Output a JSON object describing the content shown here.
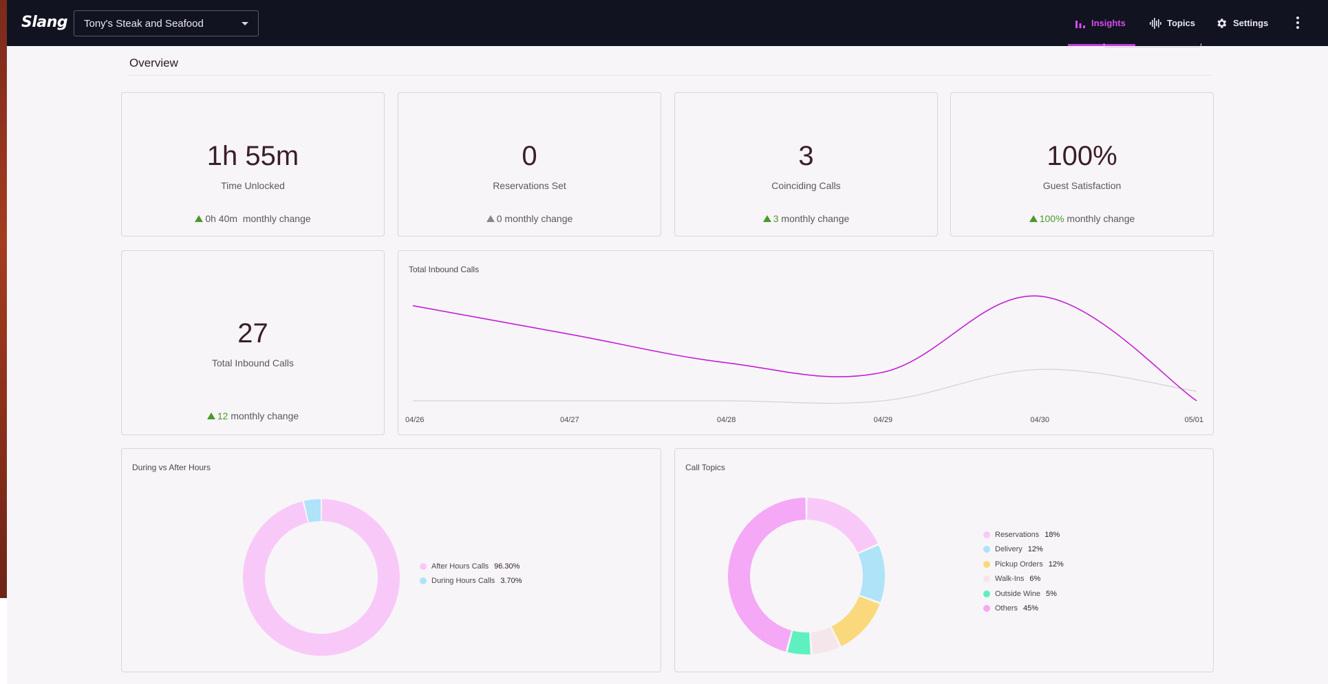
{
  "app": {
    "logo": "Slang",
    "restaurant": "Tony's Steak and Seafood"
  },
  "nav": {
    "insights": "Insights",
    "topics": "Topics",
    "settings": "Settings",
    "active": "insights",
    "accent": "#c13ee0"
  },
  "page": {
    "title": "Overview"
  },
  "kpis": [
    {
      "value": "1h 55m",
      "label": "Time Unlocked",
      "change": "0h 40m",
      "change_suffix": "monthly change",
      "trend": "up"
    },
    {
      "value": "0",
      "label": "Reservations Set",
      "change": "0",
      "change_suffix": "monthly change",
      "trend": "flat"
    },
    {
      "value": "3",
      "label": "Coinciding Calls",
      "change": "3",
      "change_suffix": "monthly change",
      "trend": "up"
    },
    {
      "value": "100%",
      "label": "Guest Satisfaction",
      "change": "100%",
      "change_suffix": "monthly change",
      "trend": "up"
    }
  ],
  "total_calls": {
    "value": "27",
    "label": "Total Inbound Calls",
    "change": "12",
    "change_suffix": "monthly change",
    "trend": "up"
  },
  "chart_data": [
    {
      "type": "line",
      "title": "Total Inbound Calls",
      "x": [
        "04/26",
        "04/27",
        "04/28",
        "04/29",
        "04/30",
        "05/01"
      ],
      "series": [
        {
          "values": [
            10,
            7,
            4,
            3,
            11,
            0
          ],
          "color": "#c41fd4"
        },
        {
          "values": [
            0,
            0,
            0,
            0,
            3.3,
            1
          ],
          "color": "#d4d4d8"
        }
      ],
      "ylim": [
        0,
        12
      ],
      "grid": false
    },
    {
      "type": "pie",
      "title": "During vs After Hours",
      "donut": true,
      "slices": [
        {
          "label": "After Hours Calls",
          "display": "96.30%",
          "value": 96.3,
          "color": "#f8c9f8"
        },
        {
          "label": "During Hours Calls",
          "display": "3.70%",
          "value": 3.7,
          "color": "#aee3f8"
        }
      ]
    },
    {
      "type": "pie",
      "title": "Call Topics",
      "donut": true,
      "slices": [
        {
          "label": "Reservations",
          "display": "18%",
          "value": 18,
          "color": "#f8c9f8"
        },
        {
          "label": "Delivery",
          "display": "12%",
          "value": 12,
          "color": "#aee3f8"
        },
        {
          "label": "Pickup Orders",
          "display": "12%",
          "value": 12,
          "color": "#fad97c"
        },
        {
          "label": "Walk-Ins",
          "display": "6%",
          "value": 6,
          "color": "#f4e6ea"
        },
        {
          "label": "Outside Wine",
          "display": "5%",
          "value": 5,
          "color": "#5ff0c0"
        },
        {
          "label": "Others",
          "display": "45%",
          "value": 45,
          "color": "#f4a8f6"
        }
      ]
    }
  ]
}
